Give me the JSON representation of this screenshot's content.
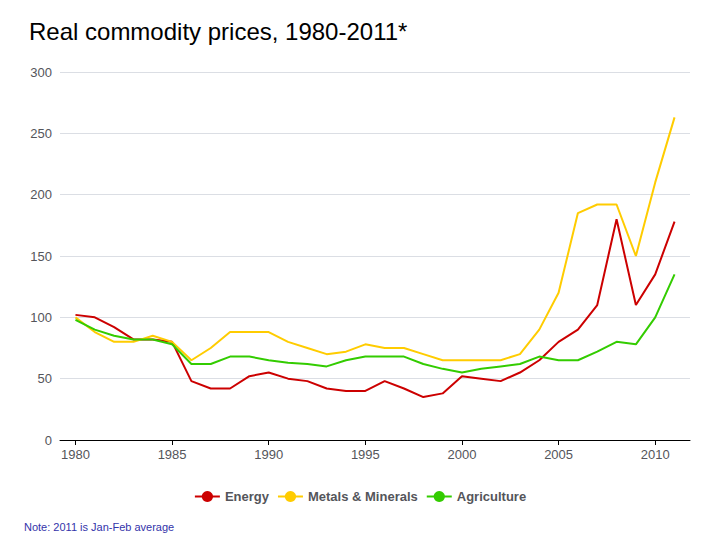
{
  "chart_data": {
    "type": "line",
    "title": "Real commodity prices, 1980-2011*",
    "note": "Note: 2011 is Jan-Feb average",
    "x": [
      1980,
      1981,
      1982,
      1983,
      1984,
      1985,
      1986,
      1987,
      1988,
      1989,
      1990,
      1991,
      1992,
      1993,
      1994,
      1995,
      1996,
      1997,
      1998,
      1999,
      2000,
      2001,
      2002,
      2003,
      2004,
      2005,
      2006,
      2007,
      2008,
      2009,
      2010,
      2011
    ],
    "series": [
      {
        "name": "Energy",
        "color": "#cc0000",
        "values": [
          102,
          100,
          92,
          82,
          82,
          80,
          48,
          42,
          42,
          52,
          55,
          50,
          48,
          42,
          40,
          40,
          48,
          42,
          35,
          38,
          52,
          50,
          48,
          55,
          65,
          80,
          90,
          110,
          180,
          110,
          135,
          178
        ]
      },
      {
        "name": "Metals & Minerals",
        "color": "#ffcc00",
        "values": [
          100,
          88,
          80,
          80,
          85,
          80,
          65,
          75,
          88,
          88,
          88,
          80,
          75,
          70,
          72,
          78,
          75,
          75,
          70,
          65,
          65,
          65,
          65,
          70,
          90,
          120,
          185,
          192,
          192,
          150,
          210,
          263
        ]
      },
      {
        "name": "Agriculture",
        "color": "#33cc00",
        "values": [
          98,
          90,
          85,
          82,
          82,
          78,
          62,
          62,
          68,
          68,
          65,
          63,
          62,
          60,
          65,
          68,
          68,
          68,
          62,
          58,
          55,
          58,
          60,
          62,
          68,
          65,
          65,
          72,
          80,
          78,
          100,
          135
        ]
      }
    ],
    "xlim": [
      1979.2,
      2011.8
    ],
    "xticks": [
      1980,
      1985,
      1990,
      1995,
      2000,
      2005,
      2010
    ],
    "ylim": [
      0,
      300
    ],
    "yticks": [
      0,
      50,
      100,
      150,
      200,
      250,
      300
    ],
    "grid": true,
    "legend": "bottom"
  }
}
